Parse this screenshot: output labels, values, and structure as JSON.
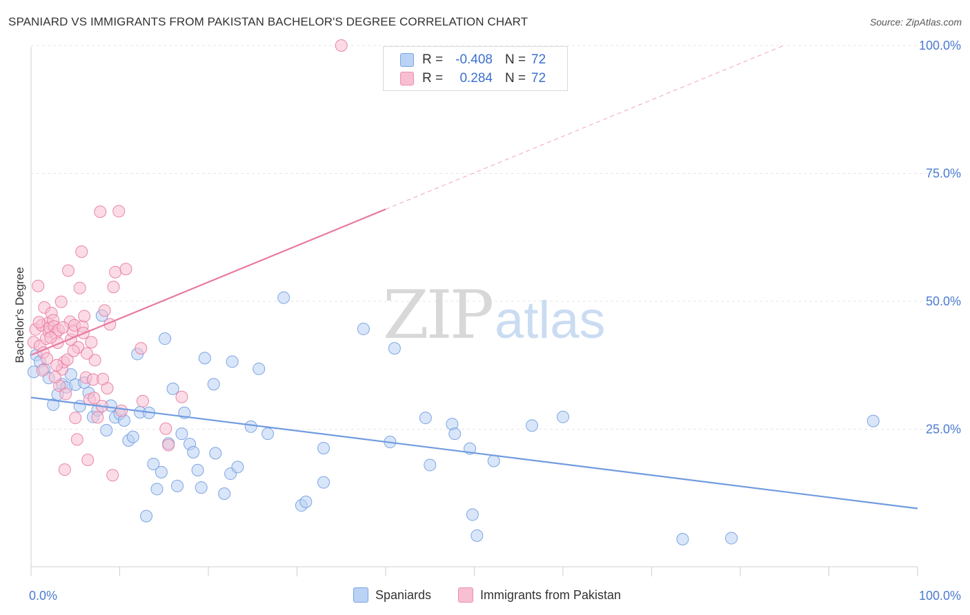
{
  "title": "SPANIARD VS IMMIGRANTS FROM PAKISTAN BACHELOR'S DEGREE CORRELATION CHART",
  "source": "Source: ZipAtlas.com",
  "watermark": {
    "zip": "ZIP",
    "atlas": "atlas"
  },
  "legend": {
    "rows": [
      {
        "r_label": "R =",
        "r_value": "-0.408",
        "n_label": "N =",
        "n_value": "72"
      },
      {
        "r_label": "R =",
        "r_value": "0.284",
        "n_label": "N =",
        "n_value": "72"
      }
    ]
  },
  "chart_data": {
    "type": "scatter",
    "ylabel": "Bachelor's Degree",
    "xlim": [
      0,
      100
    ],
    "ylim": [
      0,
      100
    ],
    "x_tick_labels": [
      "0.0%",
      "100.0%"
    ],
    "y_tick_labels": [
      "25.0%",
      "50.0%",
      "75.0%",
      "100.0%"
    ],
    "y_ticks": [
      25,
      50,
      75,
      100
    ],
    "grid": true,
    "legend_position": "top-center",
    "series": [
      {
        "name": "Spaniards",
        "color": "#6f9be0",
        "fill": "#bad2f4",
        "trend": {
          "x0": 0,
          "y0": 31.2,
          "x1": 100,
          "y1": 9.5,
          "dashed_to": 100
        },
        "points": [
          [
            0.3,
            36.2
          ],
          [
            0.6,
            39.5
          ],
          [
            1.0,
            38.2
          ],
          [
            1.5,
            36.7
          ],
          [
            2.0,
            35.0
          ],
          [
            2.5,
            29.8
          ],
          [
            3.0,
            31.8
          ],
          [
            3.5,
            33.8
          ],
          [
            4.0,
            33.2
          ],
          [
            4.5,
            35.7
          ],
          [
            5.0,
            33.7
          ],
          [
            5.5,
            29.5
          ],
          [
            6.0,
            34.1
          ],
          [
            6.5,
            32.1
          ],
          [
            7.0,
            27.4
          ],
          [
            7.5,
            28.7
          ],
          [
            8.0,
            47.2
          ],
          [
            8.5,
            24.8
          ],
          [
            9.0,
            29.6
          ],
          [
            9.5,
            27.3
          ],
          [
            10.0,
            28.0
          ],
          [
            10.5,
            26.7
          ],
          [
            11.0,
            22.8
          ],
          [
            11.5,
            23.5
          ],
          [
            12.0,
            39.7
          ],
          [
            12.3,
            28.3
          ],
          [
            13.0,
            8.0
          ],
          [
            13.3,
            28.2
          ],
          [
            13.8,
            18.2
          ],
          [
            14.2,
            13.3
          ],
          [
            14.7,
            16.6
          ],
          [
            15.1,
            42.7
          ],
          [
            15.5,
            22.2
          ],
          [
            16.0,
            32.9
          ],
          [
            16.5,
            13.9
          ],
          [
            17.0,
            24.1
          ],
          [
            17.3,
            28.2
          ],
          [
            17.9,
            22.1
          ],
          [
            18.3,
            20.5
          ],
          [
            18.8,
            17.0
          ],
          [
            19.2,
            13.6
          ],
          [
            19.6,
            38.9
          ],
          [
            20.6,
            33.8
          ],
          [
            20.8,
            20.3
          ],
          [
            21.8,
            12.4
          ],
          [
            22.5,
            16.3
          ],
          [
            22.7,
            38.2
          ],
          [
            23.3,
            17.6
          ],
          [
            24.8,
            25.5
          ],
          [
            25.7,
            36.8
          ],
          [
            26.7,
            24.1
          ],
          [
            28.5,
            50.7
          ],
          [
            30.5,
            10.1
          ],
          [
            31.0,
            10.8
          ],
          [
            33.0,
            21.3
          ],
          [
            33.0,
            14.6
          ],
          [
            37.5,
            44.6
          ],
          [
            40.5,
            22.5
          ],
          [
            41.0,
            40.8
          ],
          [
            44.5,
            27.2
          ],
          [
            45.0,
            18.0
          ],
          [
            47.5,
            26.0
          ],
          [
            47.8,
            24.1
          ],
          [
            49.5,
            21.2
          ],
          [
            49.8,
            8.3
          ],
          [
            50.3,
            4.2
          ],
          [
            52.2,
            18.8
          ],
          [
            56.5,
            25.7
          ],
          [
            60.0,
            27.4
          ],
          [
            73.5,
            3.5
          ],
          [
            79.0,
            3.7
          ],
          [
            95.0,
            26.6
          ]
        ]
      },
      {
        "name": "Immigrants from Pakistan",
        "color": "#e8799e",
        "fill": "#f7bfd1",
        "trend": {
          "x0": 0,
          "y0": 39.5,
          "x1": 40,
          "y1": 68.0,
          "dashed_to": 85
        },
        "points": [
          [
            0.3,
            42.0
          ],
          [
            0.5,
            44.5
          ],
          [
            0.8,
            53.0
          ],
          [
            1.0,
            41.3
          ],
          [
            1.2,
            45.3
          ],
          [
            1.3,
            36.5
          ],
          [
            1.5,
            48.8
          ],
          [
            1.7,
            42.7
          ],
          [
            1.9,
            45.7
          ],
          [
            2.0,
            44.1
          ],
          [
            2.1,
            44.8
          ],
          [
            2.3,
            47.7
          ],
          [
            2.5,
            46.3
          ],
          [
            2.6,
            45.1
          ],
          [
            2.8,
            43.7
          ],
          [
            3.0,
            41.9
          ],
          [
            3.1,
            44.4
          ],
          [
            3.2,
            33.5
          ],
          [
            3.4,
            49.9
          ],
          [
            3.5,
            36.7
          ],
          [
            3.7,
            38.1
          ],
          [
            3.8,
            17.1
          ],
          [
            3.9,
            31.9
          ],
          [
            4.1,
            38.6
          ],
          [
            4.2,
            56.0
          ],
          [
            4.4,
            46.0
          ],
          [
            4.5,
            42.5
          ],
          [
            4.7,
            44.2
          ],
          [
            4.9,
            45.3
          ],
          [
            5.0,
            27.2
          ],
          [
            5.2,
            23.0
          ],
          [
            5.3,
            41.0
          ],
          [
            5.5,
            52.6
          ],
          [
            5.7,
            59.7
          ],
          [
            5.8,
            45.1
          ],
          [
            6.0,
            47.1
          ],
          [
            6.2,
            35.1
          ],
          [
            6.4,
            19.0
          ],
          [
            6.6,
            30.8
          ],
          [
            6.8,
            42.0
          ],
          [
            7.0,
            34.7
          ],
          [
            7.2,
            38.5
          ],
          [
            7.5,
            27.3
          ],
          [
            7.8,
            67.5
          ],
          [
            8.0,
            29.5
          ],
          [
            8.3,
            48.2
          ],
          [
            8.6,
            33.0
          ],
          [
            8.9,
            45.5
          ],
          [
            9.2,
            16.0
          ],
          [
            9.3,
            52.8
          ],
          [
            9.5,
            55.7
          ],
          [
            9.9,
            67.6
          ],
          [
            10.2,
            28.6
          ],
          [
            10.7,
            56.3
          ],
          [
            12.4,
            40.8
          ],
          [
            12.6,
            30.5
          ],
          [
            15.2,
            25.1
          ],
          [
            15.5,
            21.9
          ],
          [
            17.0,
            31.3
          ],
          [
            35.0,
            100.0
          ],
          [
            1.4,
            40.0
          ],
          [
            2.2,
            42.9
          ],
          [
            2.9,
            37.5
          ],
          [
            3.6,
            44.9
          ],
          [
            4.8,
            40.3
          ],
          [
            5.9,
            43.8
          ],
          [
            6.3,
            39.8
          ],
          [
            7.1,
            31.1
          ],
          [
            8.1,
            34.8
          ],
          [
            0.9,
            45.9
          ],
          [
            1.8,
            38.8
          ],
          [
            2.7,
            35.2
          ]
        ]
      }
    ]
  },
  "bottom_legend": [
    "Spaniards",
    "Immigrants from Pakistan"
  ]
}
